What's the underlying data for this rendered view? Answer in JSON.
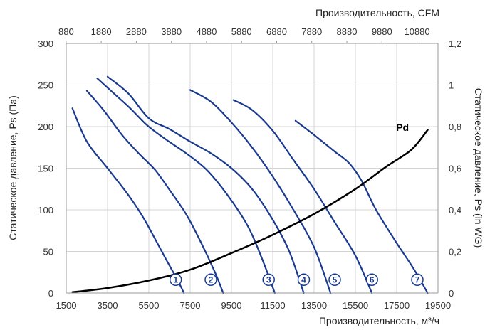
{
  "chart_data": {
    "type": "line",
    "title": "",
    "xlabel_bottom": "Производительность, м³/ч",
    "xlabel_top": "Производительность, CFM",
    "ylabel_left": "Статическое давление, Ps (Па)",
    "ylabel_right": "Статическое давление, Ps (in WG)",
    "xlim": [
      1500,
      19500
    ],
    "ylim": [
      0,
      300
    ],
    "bottom_ticks": [
      {
        "value": 1500,
        "label": "1500"
      },
      {
        "value": 3500,
        "label": "3500"
      },
      {
        "value": 5500,
        "label": "5500"
      },
      {
        "value": 7500,
        "label": "7500"
      },
      {
        "value": 9500,
        "label": "9500"
      },
      {
        "value": 11500,
        "label": "11500"
      },
      {
        "value": 13500,
        "label": "13500"
      },
      {
        "value": 15500,
        "label": "15500"
      },
      {
        "value": 17500,
        "label": "17500"
      },
      {
        "value": 19500,
        "label": "19500"
      }
    ],
    "top_ticks": [
      {
        "label": "880",
        "at_m3h": 1495
      },
      {
        "label": "1880",
        "at_m3h": 3194
      },
      {
        "label": "2880",
        "at_m3h": 4893
      },
      {
        "label": "3880",
        "at_m3h": 6592
      },
      {
        "label": "4880",
        "at_m3h": 8291
      },
      {
        "label": "5880",
        "at_m3h": 9990
      },
      {
        "label": "6880",
        "at_m3h": 11689
      },
      {
        "label": "7880",
        "at_m3h": 13388
      },
      {
        "label": "8880",
        "at_m3h": 15087
      },
      {
        "label": "9880",
        "at_m3h": 16786
      },
      {
        "label": "10880",
        "at_m3h": 18485
      }
    ],
    "left_ticks": [
      {
        "value": 0,
        "label": "0"
      },
      {
        "value": 50,
        "label": "50"
      },
      {
        "value": 100,
        "label": "100"
      },
      {
        "value": 150,
        "label": "150"
      },
      {
        "value": 200,
        "label": "200"
      },
      {
        "value": 250,
        "label": "250"
      },
      {
        "value": 300,
        "label": "300"
      }
    ],
    "right_ticks": [
      {
        "label": "0",
        "at_pa": 0
      },
      {
        "label": "0,2",
        "at_pa": 50
      },
      {
        "label": "0,4",
        "at_pa": 100
      },
      {
        "label": "0,6",
        "at_pa": 150
      },
      {
        "label": "0,8",
        "at_pa": 200
      },
      {
        "label": "1",
        "at_pa": 250
      },
      {
        "label": "1,2",
        "at_pa": 300
      }
    ],
    "grid": true,
    "colors": {
      "fan_curve": "#1a3a8f",
      "pd_curve": "#000000",
      "grid": "#d4d4d4",
      "axis": "#9a9a9a"
    },
    "series": [
      {
        "name": "1",
        "label": "1",
        "label_at": [
          6800,
          16
        ],
        "x": [
          1800,
          2500,
          3500,
          4500,
          5200,
          5800,
          6300,
          6900,
          7200
        ],
        "y": [
          222,
          182,
          150,
          118,
          92,
          65,
          42,
          15,
          0
        ]
      },
      {
        "name": "2",
        "label": "2",
        "label_at": [
          8500,
          16
        ],
        "x": [
          2500,
          3300,
          4200,
          5000,
          5800,
          6500,
          7300,
          8000,
          8700,
          9100
        ],
        "y": [
          243,
          220,
          190,
          168,
          148,
          124,
          95,
          62,
          25,
          0
        ]
      },
      {
        "name": "3",
        "label": "3",
        "label_at": [
          11300,
          16
        ],
        "x": [
          3000,
          3800,
          4600,
          5400,
          6300,
          7300,
          8300,
          9300,
          10300,
          11000,
          11600
        ],
        "y": [
          258,
          240,
          222,
          202,
          185,
          168,
          148,
          118,
          80,
          40,
          0
        ]
      },
      {
        "name": "4",
        "label": "4",
        "label_at": [
          13000,
          16
        ],
        "x": [
          3500,
          4500,
          5500,
          6500,
          7500,
          8500,
          9500,
          10500,
          11500,
          12300,
          13000
        ],
        "y": [
          260,
          240,
          210,
          197,
          182,
          168,
          150,
          125,
          88,
          50,
          0
        ]
      },
      {
        "name": "5",
        "label": "5",
        "label_at": [
          14500,
          16
        ],
        "x": [
          7500,
          8500,
          9500,
          10500,
          11500,
          12500,
          13500,
          14300
        ],
        "y": [
          244,
          230,
          205,
          175,
          140,
          100,
          55,
          0
        ]
      },
      {
        "name": "6",
        "label": "6",
        "label_at": [
          16300,
          16
        ],
        "x": [
          9600,
          10500,
          11500,
          12500,
          13500,
          14500,
          15500,
          16300
        ],
        "y": [
          232,
          220,
          195,
          160,
          125,
          85,
          45,
          0
        ]
      },
      {
        "name": "7",
        "label": "7",
        "label_at": [
          18500,
          16
        ],
        "x": [
          12600,
          13500,
          14500,
          15200,
          15800,
          16500,
          17500,
          18300,
          19000
        ],
        "y": [
          207,
          190,
          170,
          156,
          135,
          100,
          60,
          30,
          0
        ]
      },
      {
        "name": "Pd",
        "label": "Pd",
        "label_at": [
          18300,
          199
        ],
        "x": [
          1800,
          3500,
          5500,
          7500,
          9500,
          11500,
          13500,
          15500,
          17000,
          18200,
          19000
        ],
        "y": [
          1,
          6,
          15,
          28,
          48,
          70,
          95,
          125,
          152,
          172,
          196
        ]
      }
    ]
  }
}
